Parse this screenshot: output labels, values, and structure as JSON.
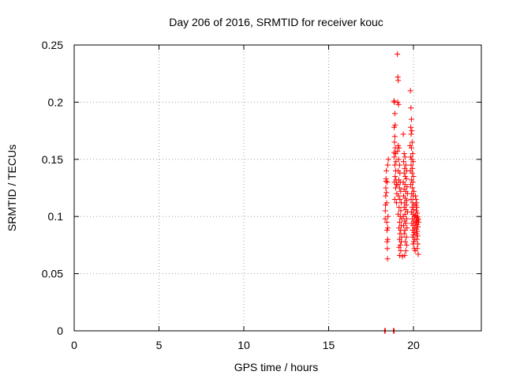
{
  "chart_data": {
    "type": "scatter",
    "title": "Day 206 of 2016, SRMTID for receiver kouc",
    "xlabel": "GPS time / hours",
    "ylabel": "SRMTID / TECUs",
    "xlim": [
      0,
      24
    ],
    "ylim": [
      0,
      0.25
    ],
    "xticks": [
      "0",
      "5",
      "10",
      "15",
      "20"
    ],
    "yticks": [
      "0",
      "0.05",
      "0.1",
      "0.15",
      "0.2",
      "0.25"
    ],
    "grid": true,
    "marker": "plus",
    "color": "#ff0000",
    "series": [
      {
        "points": [
          [
            18.3,
            0.0
          ],
          [
            18.34,
            0.0
          ],
          [
            18.82,
            0.0
          ],
          [
            18.86,
            0.0
          ],
          [
            18.33,
            0.098
          ],
          [
            18.34,
            0.105
          ],
          [
            18.35,
            0.11
          ],
          [
            18.36,
            0.118
          ],
          [
            18.37,
            0.125
          ],
          [
            18.38,
            0.131
          ],
          [
            18.38,
            0.133
          ],
          [
            18.4,
            0.14
          ],
          [
            18.41,
            0.121
          ],
          [
            18.42,
            0.112
          ],
          [
            18.43,
            0.095
          ],
          [
            18.44,
            0.088
          ],
          [
            18.45,
            0.078
          ],
          [
            18.46,
            0.072
          ],
          [
            18.47,
            0.063
          ],
          [
            18.48,
            0.08
          ],
          [
            18.49,
            0.09
          ],
          [
            18.5,
            0.1
          ],
          [
            18.48,
            0.145
          ],
          [
            18.52,
            0.15
          ],
          [
            18.45,
            0.13
          ],
          [
            18.85,
            0.201
          ],
          [
            18.88,
            0.2
          ],
          [
            18.9,
            0.19
          ],
          [
            18.92,
            0.18
          ],
          [
            18.86,
            0.178
          ],
          [
            18.9,
            0.17
          ],
          [
            18.88,
            0.165
          ],
          [
            18.93,
            0.16
          ],
          [
            18.85,
            0.156
          ],
          [
            18.95,
            0.155
          ],
          [
            18.87,
            0.152
          ],
          [
            18.97,
            0.148
          ],
          [
            18.9,
            0.145
          ],
          [
            18.95,
            0.14
          ],
          [
            18.92,
            0.135
          ],
          [
            18.97,
            0.132
          ],
          [
            18.88,
            0.13
          ],
          [
            19.0,
            0.128
          ],
          [
            18.95,
            0.125
          ],
          [
            19.02,
            0.12
          ],
          [
            18.9,
            0.115
          ],
          [
            19.0,
            0.112
          ],
          [
            19.05,
            0.242
          ],
          [
            19.08,
            0.222
          ],
          [
            19.1,
            0.219
          ],
          [
            19.07,
            0.2
          ],
          [
            19.12,
            0.198
          ],
          [
            19.1,
            0.162
          ],
          [
            19.15,
            0.16
          ],
          [
            19.06,
            0.157
          ],
          [
            19.12,
            0.15
          ],
          [
            19.18,
            0.145
          ],
          [
            19.1,
            0.14
          ],
          [
            19.2,
            0.138
          ],
          [
            19.14,
            0.132
          ],
          [
            19.22,
            0.13
          ],
          [
            19.08,
            0.128
          ],
          [
            19.18,
            0.125
          ],
          [
            19.25,
            0.122
          ],
          [
            19.12,
            0.118
          ],
          [
            19.2,
            0.115
          ],
          [
            19.28,
            0.112
          ],
          [
            19.15,
            0.108
          ],
          [
            19.25,
            0.105
          ],
          [
            19.1,
            0.102
          ],
          [
            19.22,
            0.1
          ],
          [
            19.3,
            0.098
          ],
          [
            19.18,
            0.095
          ],
          [
            19.28,
            0.092
          ],
          [
            19.15,
            0.09
          ],
          [
            19.25,
            0.088
          ],
          [
            19.2,
            0.085
          ],
          [
            19.3,
            0.082
          ],
          [
            19.18,
            0.08
          ],
          [
            19.28,
            0.078
          ],
          [
            19.22,
            0.075
          ],
          [
            19.15,
            0.073
          ],
          [
            19.25,
            0.07
          ],
          [
            19.18,
            0.066
          ],
          [
            19.35,
            0.065
          ],
          [
            19.4,
            0.172
          ],
          [
            19.45,
            0.155
          ],
          [
            19.5,
            0.152
          ],
          [
            19.42,
            0.148
          ],
          [
            19.55,
            0.145
          ],
          [
            19.48,
            0.142
          ],
          [
            19.6,
            0.14
          ],
          [
            19.45,
            0.138
          ],
          [
            19.52,
            0.135
          ],
          [
            19.58,
            0.133
          ],
          [
            19.4,
            0.13
          ],
          [
            19.5,
            0.128
          ],
          [
            19.62,
            0.126
          ],
          [
            19.45,
            0.124
          ],
          [
            19.55,
            0.122
          ],
          [
            19.65,
            0.12
          ],
          [
            19.42,
            0.118
          ],
          [
            19.52,
            0.116
          ],
          [
            19.6,
            0.114
          ],
          [
            19.48,
            0.112
          ],
          [
            19.58,
            0.11
          ],
          [
            19.45,
            0.108
          ],
          [
            19.55,
            0.106
          ],
          [
            19.65,
            0.104
          ],
          [
            19.5,
            0.102
          ],
          [
            19.4,
            0.1
          ],
          [
            19.6,
            0.098
          ],
          [
            19.48,
            0.096
          ],
          [
            19.55,
            0.094
          ],
          [
            19.42,
            0.092
          ],
          [
            19.62,
            0.09
          ],
          [
            19.5,
            0.088
          ],
          [
            19.45,
            0.085
          ],
          [
            19.58,
            0.082
          ],
          [
            19.52,
            0.078
          ],
          [
            19.6,
            0.075
          ],
          [
            19.55,
            0.07
          ],
          [
            19.48,
            0.066
          ],
          [
            19.82,
            0.21
          ],
          [
            19.85,
            0.195
          ],
          [
            19.88,
            0.185
          ],
          [
            19.84,
            0.178
          ],
          [
            19.9,
            0.175
          ],
          [
            19.86,
            0.172
          ],
          [
            19.92,
            0.165
          ],
          [
            19.8,
            0.162
          ],
          [
            19.88,
            0.16
          ],
          [
            19.95,
            0.155
          ],
          [
            19.84,
            0.152
          ],
          [
            19.9,
            0.15
          ],
          [
            19.98,
            0.148
          ],
          [
            19.86,
            0.145
          ],
          [
            19.94,
            0.142
          ],
          [
            19.82,
            0.14
          ],
          [
            19.92,
            0.138
          ],
          [
            20.0,
            0.135
          ],
          [
            19.88,
            0.132
          ],
          [
            19.96,
            0.13
          ],
          [
            19.84,
            0.128
          ],
          [
            19.94,
            0.125
          ],
          [
            20.02,
            0.122
          ],
          [
            19.9,
            0.12
          ],
          [
            19.98,
            0.118
          ],
          [
            19.86,
            0.115
          ],
          [
            19.95,
            0.112
          ],
          [
            20.04,
            0.11
          ],
          [
            19.92,
            0.108
          ],
          [
            20.0,
            0.106
          ],
          [
            19.88,
            0.104
          ],
          [
            19.96,
            0.102
          ],
          [
            20.05,
            0.1
          ],
          [
            19.94,
            0.098
          ],
          [
            20.02,
            0.096
          ],
          [
            19.9,
            0.094
          ],
          [
            19.98,
            0.092
          ],
          [
            20.06,
            0.09
          ],
          [
            19.95,
            0.088
          ],
          [
            20.04,
            0.086
          ],
          [
            20.0,
            0.084
          ],
          [
            19.96,
            0.082
          ],
          [
            20.08,
            0.08
          ],
          [
            20.02,
            0.078
          ],
          [
            19.98,
            0.076
          ],
          [
            20.05,
            0.072
          ],
          [
            20.1,
            0.07
          ],
          [
            20.12,
            0.118
          ],
          [
            20.15,
            0.115
          ],
          [
            20.18,
            0.112
          ],
          [
            20.14,
            0.11
          ],
          [
            20.2,
            0.108
          ],
          [
            20.16,
            0.105
          ],
          [
            20.22,
            0.103
          ],
          [
            20.12,
            0.101
          ],
          [
            20.18,
            0.099
          ],
          [
            20.24,
            0.097
          ],
          [
            20.14,
            0.095
          ],
          [
            20.2,
            0.093
          ],
          [
            20.26,
            0.091
          ],
          [
            20.16,
            0.089
          ],
          [
            20.22,
            0.087
          ],
          [
            20.18,
            0.085
          ],
          [
            20.24,
            0.083
          ],
          [
            20.2,
            0.08
          ],
          [
            20.26,
            0.076
          ],
          [
            20.22,
            0.072
          ],
          [
            20.28,
            0.067
          ],
          [
            20.14,
            0.094
          ],
          [
            20.2,
            0.096
          ],
          [
            20.24,
            0.1
          ],
          [
            20.28,
            0.098
          ],
          [
            20.3,
            0.095
          ]
        ]
      }
    ]
  }
}
